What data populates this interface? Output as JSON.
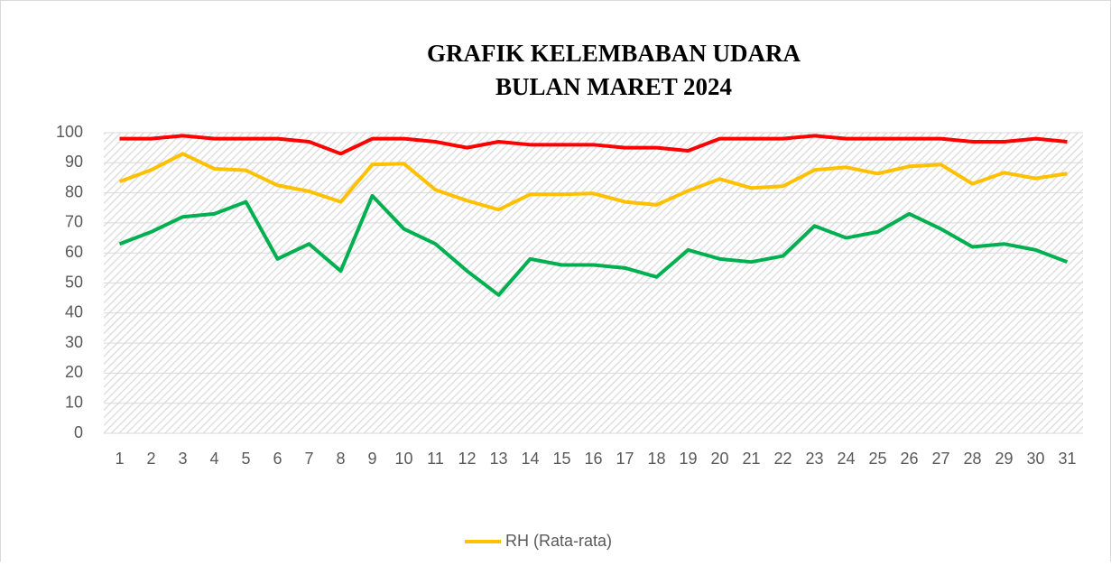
{
  "chart_data": {
    "type": "line",
    "title": [
      "GRAFIK KELEMBABAN UDARA",
      "BULAN MARET 2024"
    ],
    "categories": [
      "1",
      "2",
      "3",
      "4",
      "5",
      "6",
      "7",
      "8",
      "9",
      "10",
      "11",
      "12",
      "13",
      "14",
      "15",
      "16",
      "17",
      "18",
      "19",
      "20",
      "21",
      "22",
      "23",
      "24",
      "25",
      "26",
      "27",
      "28",
      "29",
      "30",
      "31"
    ],
    "series": [
      {
        "color": "#ff0000",
        "values": [
          98,
          98,
          99,
          98,
          98,
          98,
          97,
          93,
          98,
          98,
          97,
          95,
          97,
          96,
          96,
          96,
          95,
          95,
          94,
          98,
          98,
          98,
          99,
          98,
          98,
          98,
          98,
          97,
          97,
          98,
          97
        ]
      },
      {
        "name": "RH (Rata-rata)",
        "color": "#ffc000",
        "values": [
          83.7,
          87.6,
          93,
          88,
          87.5,
          82.5,
          80.5,
          77,
          89.4,
          89.7,
          81,
          77.4,
          74.4,
          79.5,
          79.5,
          79.8,
          77,
          76,
          80.7,
          84.6,
          81.6,
          82.2,
          87.6,
          88.5,
          86.4,
          88.8,
          89.4,
          83,
          86.7,
          84.8,
          86.4
        ]
      },
      {
        "color": "#00b050",
        "values": [
          63,
          67,
          72,
          73,
          77,
          58,
          63,
          54,
          79,
          68,
          63,
          54,
          46,
          58,
          56,
          56,
          55,
          52,
          61,
          58,
          57,
          59,
          69,
          65,
          67,
          73,
          68,
          62,
          63,
          61,
          57
        ]
      }
    ],
    "ylim": [
      0,
      100
    ],
    "yticks": [
      0,
      10,
      20,
      30,
      40,
      50,
      60,
      70,
      80,
      90,
      100
    ],
    "grid": true,
    "legend": "bottom"
  }
}
